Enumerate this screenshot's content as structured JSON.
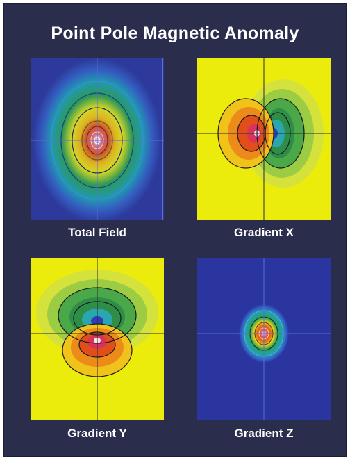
{
  "title": "Point Pole Magnetic Anomaly",
  "panels": [
    {
      "label": "Total Field"
    },
    {
      "label": "Gradient X"
    },
    {
      "label": "Gradient Y"
    },
    {
      "label": "Gradient Z"
    }
  ],
  "colors": {
    "frame_background": "#2b2d4d",
    "map_background_blue": "#2d3a9c",
    "map_background_yellow": "#ecec0c",
    "positive_green": "#2fa14f",
    "negative_red": "#d23a1e",
    "crosshair": "#5a6ad6"
  }
}
